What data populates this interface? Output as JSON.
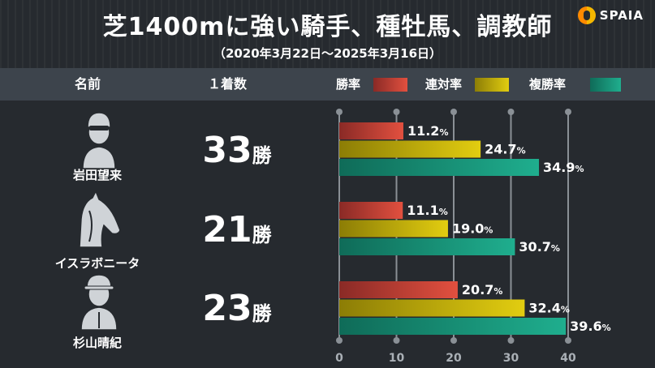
{
  "title": "芝1400mに強い騎手、種牡馬、調教師",
  "subtitle": "（2020年3月22日～2025年3月16日）",
  "logo": {
    "text": "SPAIA",
    "icon": "spaia-logo-icon"
  },
  "header": {
    "name_label": "名前",
    "wins_label": "１着数"
  },
  "colors": {
    "win": "#d9463a",
    "place": "#d4be0a",
    "show": "#1a9c80"
  },
  "rows": [
    {
      "name": "岩田望来",
      "icon": "jockey-icon",
      "wins": "33",
      "wins_unit": "勝",
      "win_label": "11.2",
      "place_label": "24.7",
      "show_label": "34.9",
      "pct": "%"
    },
    {
      "name": "イスラボニータ",
      "icon": "horse-head-icon",
      "wins": "21",
      "wins_unit": "勝",
      "win_label": "11.1",
      "place_label": "19.0",
      "show_label": "30.7",
      "pct": "%"
    },
    {
      "name": "杉山晴紀",
      "icon": "trainer-icon",
      "wins": "23",
      "wins_unit": "勝",
      "win_label": "20.7",
      "place_label": "32.4",
      "show_label": "39.6",
      "pct": "%"
    }
  ],
  "chart_data": {
    "type": "bar",
    "orientation": "horizontal",
    "categories": [
      "岩田望来",
      "イスラボニータ",
      "杉山晴紀"
    ],
    "series": [
      {
        "name": "勝率",
        "values": [
          11.2,
          11.1,
          20.7
        ]
      },
      {
        "name": "連対率",
        "values": [
          24.7,
          19.0,
          32.4
        ]
      },
      {
        "name": "複勝率",
        "values": [
          34.9,
          30.7,
          39.6
        ]
      }
    ],
    "xlim": [
      0,
      40
    ],
    "xticks": [
      "0",
      "10",
      "20",
      "30",
      "40"
    ],
    "grid": true,
    "legend": "top"
  }
}
